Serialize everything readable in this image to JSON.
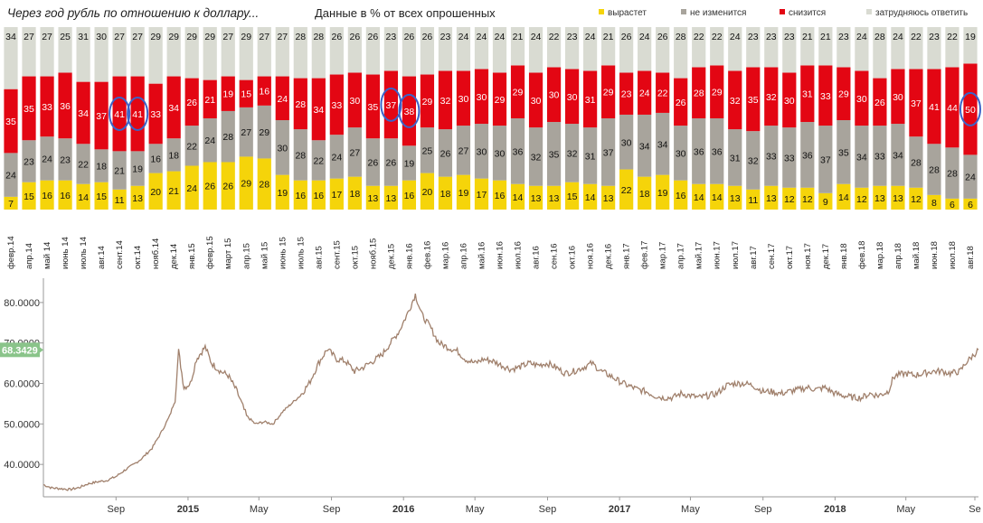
{
  "chart_data": [
    {
      "type": "bar",
      "stacked": true,
      "title": "Через год рубль по отношению к доллару...",
      "subtitle": "Данные в % от всех опрошенных",
      "legend_position": "top",
      "series": [
        {
          "name": "вырастет",
          "color": "#f5d40a",
          "values": [
            7,
            15,
            16,
            16,
            14,
            15,
            11,
            13,
            20,
            21,
            24,
            26,
            26,
            29,
            28,
            19,
            16,
            16,
            17,
            18,
            13,
            13,
            16,
            20,
            18,
            19,
            17,
            16,
            14,
            13,
            13,
            15,
            14,
            13,
            22,
            18,
            19,
            16,
            14,
            14,
            13,
            11,
            13,
            12,
            12,
            9,
            14,
            12,
            13,
            13,
            12,
            8,
            6,
            6
          ]
        },
        {
          "name": "не изменится",
          "color": "#a8a49c",
          "values": [
            24,
            23,
            24,
            23,
            22,
            18,
            21,
            19,
            16,
            18,
            22,
            24,
            28,
            27,
            29,
            30,
            28,
            22,
            24,
            27,
            26,
            26,
            19,
            25,
            26,
            27,
            30,
            30,
            36,
            32,
            35,
            32,
            31,
            37,
            30,
            34,
            34,
            30,
            36,
            36,
            31,
            32,
            33,
            33,
            36,
            37,
            35,
            34,
            33,
            34,
            28,
            28,
            28,
            24
          ]
        },
        {
          "name": "снизится",
          "color": "#e30613",
          "values": [
            35,
            35,
            33,
            36,
            34,
            37,
            41,
            41,
            33,
            34,
            26,
            21,
            19,
            15,
            16,
            24,
            28,
            34,
            33,
            30,
            35,
            37,
            38,
            29,
            32,
            30,
            30,
            29,
            29,
            30,
            30,
            30,
            31,
            29,
            23,
            24,
            22,
            26,
            28,
            29,
            32,
            35,
            32,
            30,
            31,
            33,
            29,
            30,
            26,
            30,
            37,
            41,
            44,
            50
          ]
        },
        {
          "name": "затрудняюсь ответить",
          "color": "#d9dbd2",
          "values": [
            34,
            27,
            27,
            25,
            31,
            30,
            27,
            27,
            29,
            29,
            29,
            29,
            27,
            29,
            27,
            27,
            28,
            28,
            26,
            26,
            26,
            23,
            26,
            26,
            23,
            24,
            24,
            24,
            21,
            24,
            22,
            23,
            24,
            21,
            26,
            24,
            26,
            28,
            22,
            22,
            24,
            23,
            23,
            23,
            21,
            21,
            23,
            24,
            28,
            24,
            22,
            23,
            22,
            19
          ]
        }
      ],
      "categories": [
        "февр.14",
        "апр.14",
        "май 14",
        "июнь 14",
        "июль 14",
        "авг.14",
        "сент.14",
        "окт.14",
        "нояб.14",
        "дек.14",
        "янв.15",
        "февр.15",
        "март 15",
        "апр.15",
        "май 15",
        "июнь 15",
        "июль 15",
        "авг.15",
        "сент.15",
        "окт.15",
        "нояб.15",
        "дек.15",
        "янв.16",
        "фев.16",
        "мар.16",
        "апр.16",
        "май.16",
        "июн.16",
        "июл.16",
        "авг.16",
        "сен.16",
        "окт.16",
        "ноя.16",
        "дек.16",
        "янв.17",
        "фев.17",
        "мар.17",
        "апр.17",
        "май.17",
        "июн.17",
        "июл.17",
        "авг.17",
        "сен.17",
        "окт.17",
        "ноя.17",
        "дек.17",
        "янв.18",
        "фев.18",
        "мар.18",
        "апр.18",
        "май.18",
        "июн.18",
        "июл.18",
        "авг.18"
      ],
      "annotations": [
        {
          "category": "сент.14",
          "series": "снизится",
          "marker": "circle"
        },
        {
          "category": "окт.14",
          "series": "снизится",
          "marker": "circle"
        },
        {
          "category": "дек.15",
          "series": "снизится",
          "marker": "circle"
        },
        {
          "category": "янв.16",
          "series": "снизится",
          "marker": "circle"
        },
        {
          "category": "авг.18",
          "series": "снизится",
          "marker": "circle"
        }
      ]
    },
    {
      "type": "line",
      "ylim": [
        32,
        86
      ],
      "yticks": [
        "40.0000",
        "50.0000",
        "60.0000",
        "70.0000",
        "80.0000"
      ],
      "ytick_values": [
        40,
        50,
        60,
        70,
        80
      ],
      "xticks": [
        "Sep",
        "2015",
        "May",
        "Sep",
        "2016",
        "May",
        "Sep",
        "2017",
        "May",
        "Sep",
        "2018",
        "May",
        "Se"
      ],
      "xtick_values": [
        "2014-09-01",
        "2015-01-01",
        "2015-05-01",
        "2015-09-01",
        "2016-01-01",
        "2016-05-01",
        "2016-09-01",
        "2017-01-01",
        "2017-05-01",
        "2017-09-01",
        "2018-01-01",
        "2018-05-01",
        "2018-09-01"
      ],
      "xlim": [
        "2014-05-01",
        "2018-09-01"
      ],
      "last_value_label": "68.3429",
      "last_value_label_color": "#8ac48a",
      "line_color": "#a0806c",
      "series": [
        {
          "x": [
            "2014-05-01",
            "2014-05-15",
            "2014-06-01",
            "2014-06-15",
            "2014-07-01",
            "2014-07-15",
            "2014-08-01",
            "2014-08-15",
            "2014-09-01",
            "2014-09-15",
            "2014-10-01",
            "2014-10-15",
            "2014-11-01",
            "2014-11-15",
            "2014-12-01",
            "2014-12-10",
            "2014-12-16",
            "2014-12-25",
            "2015-01-05",
            "2015-01-15",
            "2015-01-30",
            "2015-02-10",
            "2015-02-25",
            "2015-03-10",
            "2015-03-25",
            "2015-04-10",
            "2015-04-25",
            "2015-05-10",
            "2015-05-25",
            "2015-06-10",
            "2015-06-25",
            "2015-07-10",
            "2015-07-25",
            "2015-08-10",
            "2015-08-25",
            "2015-09-10",
            "2015-09-25",
            "2015-10-10",
            "2015-10-25",
            "2015-11-10",
            "2015-11-25",
            "2015-12-10",
            "2015-12-25",
            "2016-01-10",
            "2016-01-21",
            "2016-02-01",
            "2016-02-15",
            "2016-03-01",
            "2016-03-15",
            "2016-04-01",
            "2016-04-15",
            "2016-05-01",
            "2016-05-15",
            "2016-06-01",
            "2016-06-15",
            "2016-07-01",
            "2016-07-15",
            "2016-08-01",
            "2016-08-15",
            "2016-09-01",
            "2016-09-15",
            "2016-10-01",
            "2016-10-15",
            "2016-11-01",
            "2016-11-15",
            "2016-12-01",
            "2016-12-15",
            "2017-01-01",
            "2017-01-15",
            "2017-02-01",
            "2017-02-15",
            "2017-03-01",
            "2017-03-15",
            "2017-04-01",
            "2017-04-15",
            "2017-05-01",
            "2017-05-15",
            "2017-06-01",
            "2017-06-15",
            "2017-07-01",
            "2017-07-15",
            "2017-08-01",
            "2017-08-15",
            "2017-09-01",
            "2017-09-15",
            "2017-10-01",
            "2017-10-15",
            "2017-11-01",
            "2017-11-15",
            "2017-12-01",
            "2017-12-15",
            "2018-01-01",
            "2018-01-15",
            "2018-02-01",
            "2018-02-15",
            "2018-03-01",
            "2018-03-15",
            "2018-04-01",
            "2018-04-10",
            "2018-04-15",
            "2018-05-01",
            "2018-05-15",
            "2018-06-01",
            "2018-06-15",
            "2018-07-01",
            "2018-07-15",
            "2018-08-01",
            "2018-08-10",
            "2018-08-20",
            "2018-09-01"
          ],
          "y": [
            35.0,
            34.2,
            34.0,
            33.8,
            34.3,
            35.2,
            35.7,
            36.0,
            37.0,
            38.5,
            40.0,
            41.5,
            44.0,
            47.5,
            52.0,
            56.0,
            68.0,
            59.0,
            60.0,
            66.0,
            69.0,
            65.0,
            63.0,
            62.0,
            58.0,
            52.0,
            50.0,
            50.5,
            50.0,
            53.0,
            55.0,
            57.0,
            60.0,
            65.0,
            68.5,
            66.0,
            65.5,
            63.0,
            64.0,
            65.5,
            67.0,
            70.0,
            73.0,
            78.0,
            82.0,
            77.0,
            74.0,
            70.0,
            69.0,
            68.0,
            66.0,
            65.0,
            66.0,
            65.5,
            64.5,
            63.5,
            64.0,
            65.0,
            64.5,
            65.0,
            64.0,
            62.5,
            63.0,
            64.0,
            65.0,
            63.0,
            62.0,
            60.5,
            59.5,
            58.5,
            58.0,
            57.0,
            56.5,
            56.5,
            57.5,
            57.0,
            56.5,
            57.0,
            57.5,
            59.5,
            60.0,
            60.0,
            59.5,
            58.0,
            58.0,
            57.5,
            58.0,
            58.5,
            59.0,
            58.5,
            59.0,
            57.5,
            57.0,
            56.5,
            56.5,
            57.5,
            57.0,
            58.0,
            61.5,
            62.0,
            62.5,
            62.0,
            62.5,
            63.0,
            63.0,
            62.5,
            63.0,
            65.0,
            66.5,
            68.3
          ]
        }
      ]
    }
  ]
}
